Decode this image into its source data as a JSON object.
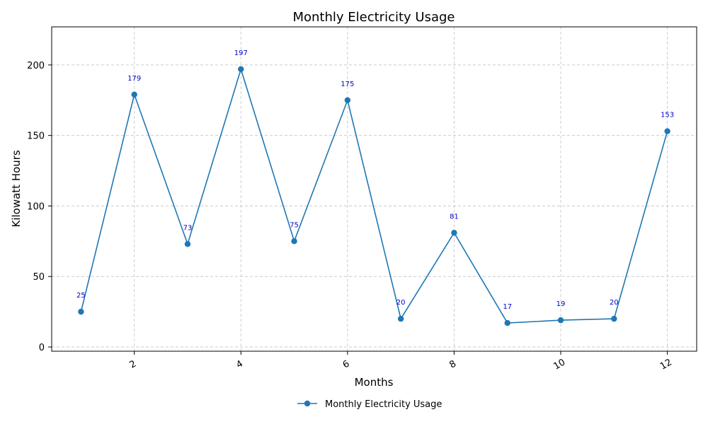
{
  "chart_data": {
    "type": "line",
    "title": "Monthly Electricity Usage",
    "xlabel": "Months",
    "ylabel": "Kilowatt Hours",
    "xlim": [
      0.45,
      12.55
    ],
    "ylim": [
      -3,
      227
    ],
    "x_ticks": [
      2,
      4,
      6,
      8,
      10,
      12
    ],
    "y_ticks": [
      0,
      50,
      100,
      150,
      200
    ],
    "grid": true,
    "legend_position": "bottom-center",
    "series": [
      {
        "name": "Monthly Electricity Usage",
        "color": "#1f77b4",
        "marker": "circle",
        "x": [
          1,
          2,
          3,
          4,
          5,
          6,
          7,
          8,
          9,
          10,
          11,
          12
        ],
        "y": [
          25,
          179,
          73,
          197,
          75,
          175,
          20,
          81,
          17,
          19,
          20,
          153
        ]
      }
    ],
    "data_label_color": "#0000cc"
  }
}
